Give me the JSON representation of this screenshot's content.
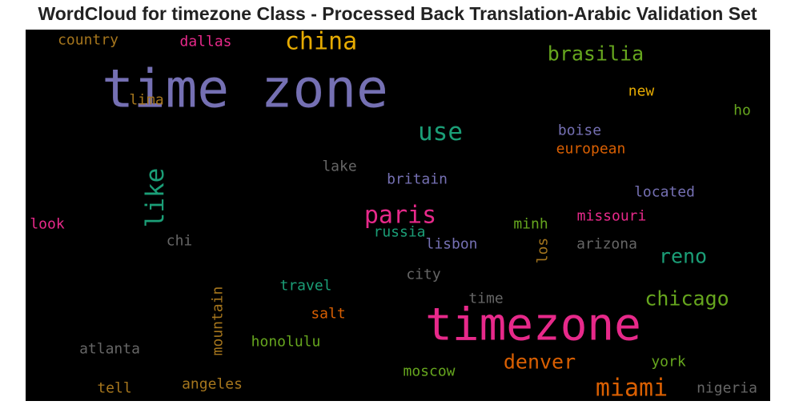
{
  "chart_data": {
    "type": "wordcloud",
    "title": "WordCloud for timezone Class - Processed Back Translation-Arabic Validation Set",
    "background": "#000000",
    "words": [
      {
        "text": "time zone",
        "color": "#7570b3",
        "orientation": "horizontal"
      },
      {
        "text": "timezone",
        "color": "#e7298a",
        "orientation": "horizontal"
      },
      {
        "text": "china",
        "color": "#e6ab02",
        "orientation": "horizontal"
      },
      {
        "text": "use",
        "color": "#1b9e77",
        "orientation": "horizontal"
      },
      {
        "text": "brasilia",
        "color": "#66a61e",
        "orientation": "horizontal"
      },
      {
        "text": "like",
        "color": "#1b9e77",
        "orientation": "vertical"
      },
      {
        "text": "paris",
        "color": "#e7298a",
        "orientation": "horizontal"
      },
      {
        "text": "miami",
        "color": "#d95f02",
        "orientation": "horizontal"
      },
      {
        "text": "chicago",
        "color": "#66a61e",
        "orientation": "horizontal"
      },
      {
        "text": "denver",
        "color": "#d95f02",
        "orientation": "horizontal"
      },
      {
        "text": "reno",
        "color": "#1b9e77",
        "orientation": "horizontal"
      },
      {
        "text": "country",
        "color": "#a6761d",
        "orientation": "horizontal"
      },
      {
        "text": "dallas",
        "color": "#e7298a",
        "orientation": "horizontal"
      },
      {
        "text": "lima",
        "color": "#a6761d",
        "orientation": "horizontal"
      },
      {
        "text": "new",
        "color": "#e6ab02",
        "orientation": "horizontal"
      },
      {
        "text": "ho",
        "color": "#66a61e",
        "orientation": "horizontal"
      },
      {
        "text": "boise",
        "color": "#7570b3",
        "orientation": "horizontal"
      },
      {
        "text": "european",
        "color": "#d95f02",
        "orientation": "horizontal"
      },
      {
        "text": "lake",
        "color": "#666666",
        "orientation": "horizontal"
      },
      {
        "text": "britain",
        "color": "#7570b3",
        "orientation": "horizontal"
      },
      {
        "text": "located",
        "color": "#7570b3",
        "orientation": "horizontal"
      },
      {
        "text": "missouri",
        "color": "#e7298a",
        "orientation": "horizontal"
      },
      {
        "text": "look",
        "color": "#e7298a",
        "orientation": "horizontal"
      },
      {
        "text": "russia",
        "color": "#1b9e77",
        "orientation": "horizontal"
      },
      {
        "text": "minh",
        "color": "#66a61e",
        "orientation": "horizontal"
      },
      {
        "text": "chi",
        "color": "#666666",
        "orientation": "horizontal"
      },
      {
        "text": "lisbon",
        "color": "#7570b3",
        "orientation": "horizontal"
      },
      {
        "text": "arizona",
        "color": "#666666",
        "orientation": "horizontal"
      },
      {
        "text": "los",
        "color": "#a6761d",
        "orientation": "vertical"
      },
      {
        "text": "city",
        "color": "#666666",
        "orientation": "horizontal"
      },
      {
        "text": "travel",
        "color": "#1b9e77",
        "orientation": "horizontal"
      },
      {
        "text": "mountain",
        "color": "#a6761d",
        "orientation": "vertical"
      },
      {
        "text": "salt",
        "color": "#d95f02",
        "orientation": "horizontal"
      },
      {
        "text": "time",
        "color": "#666666",
        "orientation": "horizontal"
      },
      {
        "text": "atlanta",
        "color": "#666666",
        "orientation": "horizontal"
      },
      {
        "text": "honolulu",
        "color": "#66a61e",
        "orientation": "horizontal"
      },
      {
        "text": "york",
        "color": "#66a61e",
        "orientation": "horizontal"
      },
      {
        "text": "moscow",
        "color": "#66a61e",
        "orientation": "horizontal"
      },
      {
        "text": "tell",
        "color": "#a6761d",
        "orientation": "horizontal"
      },
      {
        "text": "angeles",
        "color": "#a6761d",
        "orientation": "horizontal"
      },
      {
        "text": "nigeria",
        "color": "#666666",
        "orientation": "horizontal"
      }
    ]
  }
}
